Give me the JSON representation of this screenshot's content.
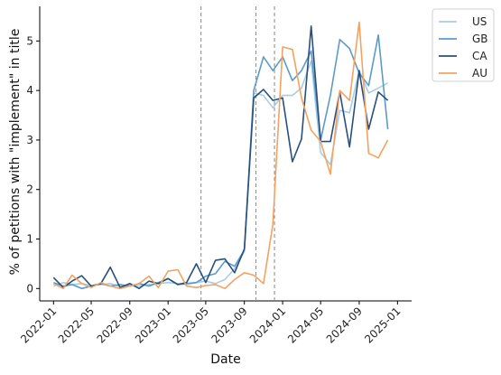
{
  "chart_data": {
    "type": "line",
    "xlabel": "Date",
    "ylabel": "% of petitions with \"implement\" in title",
    "ylim": [
      -0.25,
      5.7
    ],
    "xlim": [
      "2021-11-18",
      "2025-02-15"
    ],
    "y_ticks": [
      0,
      1,
      2,
      3,
      4,
      5
    ],
    "x_ticks": [
      "2022-01",
      "2022-05",
      "2022-09",
      "2023-01",
      "2023-05",
      "2023-09",
      "2024-01",
      "2024-05",
      "2024-09",
      "2025-01"
    ],
    "grid": false,
    "legend_position": "upper-right-outside",
    "vlines": [
      "2023-04-16",
      "2023-10-08",
      "2023-12-06"
    ],
    "x": [
      "2022-01",
      "2022-02",
      "2022-03",
      "2022-04",
      "2022-05",
      "2022-06",
      "2022-07",
      "2022-08",
      "2022-09",
      "2022-10",
      "2022-11",
      "2022-12",
      "2023-01",
      "2023-02",
      "2023-03",
      "2023-04",
      "2023-05",
      "2023-06",
      "2023-07",
      "2023-08",
      "2023-09",
      "2023-10",
      "2023-11",
      "2023-12",
      "2024-01",
      "2024-02",
      "2024-03",
      "2024-04",
      "2024-05",
      "2024-06",
      "2024-07",
      "2024-08",
      "2024-09",
      "2024-10",
      "2024-11",
      "2024-12"
    ],
    "series": [
      {
        "name": "US",
        "color": "#a6cee3",
        "values": [
          0.05,
          0.12,
          0.08,
          0.1,
          0.06,
          0.08,
          0.1,
          0.04,
          0.07,
          0.05,
          0.08,
          0.1,
          0.12,
          0.1,
          0.08,
          0.12,
          0.15,
          0.1,
          0.18,
          0.4,
          0.75,
          3.95,
          3.9,
          3.65,
          3.9,
          3.9,
          4.05,
          4.6,
          2.75,
          2.5,
          3.6,
          3.55,
          4.4,
          3.95,
          4.05,
          4.15
        ]
      },
      {
        "name": "GB",
        "color": "#5b9bc9",
        "values": [
          0.12,
          0.05,
          0.08,
          0.0,
          0.05,
          0.1,
          0.05,
          0.08,
          0.05,
          0.1,
          0.05,
          0.12,
          0.2,
          0.08,
          0.1,
          0.12,
          0.25,
          0.3,
          0.55,
          0.45,
          0.78,
          4.0,
          4.68,
          4.4,
          4.68,
          4.2,
          4.4,
          4.8,
          3.0,
          3.9,
          5.03,
          4.85,
          4.35,
          4.1,
          5.12,
          3.22
        ]
      },
      {
        "name": "CA",
        "color": "#284f7e",
        "values": [
          0.22,
          0.02,
          0.15,
          0.26,
          0.05,
          0.1,
          0.43,
          0.02,
          0.1,
          0.0,
          0.15,
          0.1,
          0.2,
          0.08,
          0.12,
          0.5,
          0.12,
          0.57,
          0.6,
          0.32,
          0.8,
          3.85,
          4.02,
          3.8,
          3.85,
          2.56,
          3.02,
          5.3,
          2.97,
          2.97,
          3.97,
          2.86,
          4.4,
          3.22,
          3.97,
          3.8
        ]
      },
      {
        "name": "AU",
        "color": "#f4a261",
        "values": [
          0.1,
          0.0,
          0.27,
          0.1,
          0.02,
          0.12,
          0.05,
          0.0,
          0.05,
          0.1,
          0.25,
          0.02,
          0.35,
          0.38,
          0.05,
          0.02,
          0.06,
          0.08,
          0.0,
          0.18,
          0.32,
          0.27,
          0.1,
          1.3,
          4.88,
          4.83,
          3.85,
          3.2,
          2.97,
          2.31,
          4.0,
          3.8,
          5.38,
          2.73,
          2.64,
          3.0
        ]
      }
    ]
  }
}
